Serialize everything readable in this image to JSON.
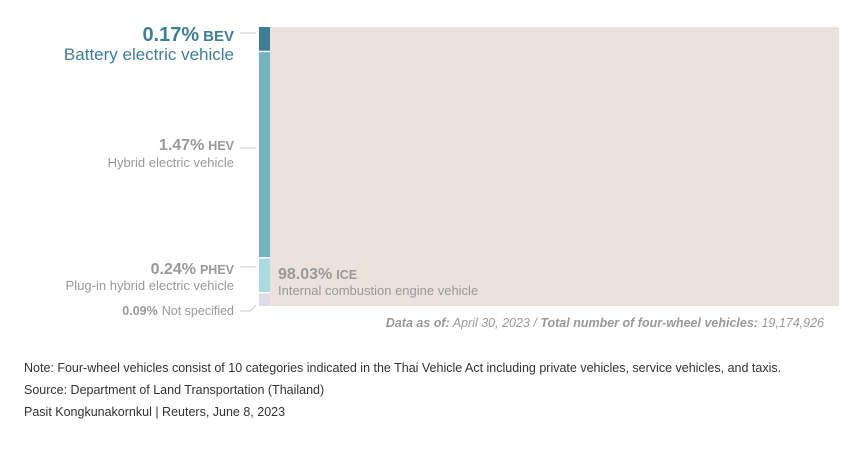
{
  "chart_data": {
    "type": "bar",
    "subtype": "stacked-share",
    "categories": [
      "BEV",
      "HEV",
      "PHEV",
      "Not specified",
      "ICE"
    ],
    "category_names": [
      "Battery electric vehicle",
      "Hybrid electric vehicle",
      "Plug-in hybrid electric vehicle",
      "",
      "Internal combustion engine vehicle"
    ],
    "values": [
      0.17,
      1.47,
      0.24,
      0.09,
      98.03
    ],
    "value_labels": [
      "0.17%",
      "1.47%",
      "0.24%",
      "0.09%",
      "98.03%"
    ],
    "colors": {
      "BEV": "#3e7f96",
      "HEV": "#72b5c0",
      "PHEV": "#a9dbe0",
      "Not specified": "#dcdbe6",
      "ICE": "#ebe2de",
      "bev_label": "#3e7f96",
      "muted_label": "#999999",
      "leader": "#cccccc"
    },
    "unit": "%"
  },
  "footer": {
    "data_as_of_label": "Data as of:",
    "data_as_of_value": "April 30, 2023",
    "separator": "/",
    "total_label": "Total number of four-wheel vehicles:",
    "total_value": "19,174,926"
  },
  "notes": {
    "note": "Note: Four-wheel vehicles consist of 10 categories indicated in the Thai Vehicle Act including private vehicles, service vehicles, and taxis.",
    "source": "Source: Department of Land Transportation (Thailand)",
    "credit": "Pasit Kongkunakornkul | Reuters, June 8, 2023"
  }
}
